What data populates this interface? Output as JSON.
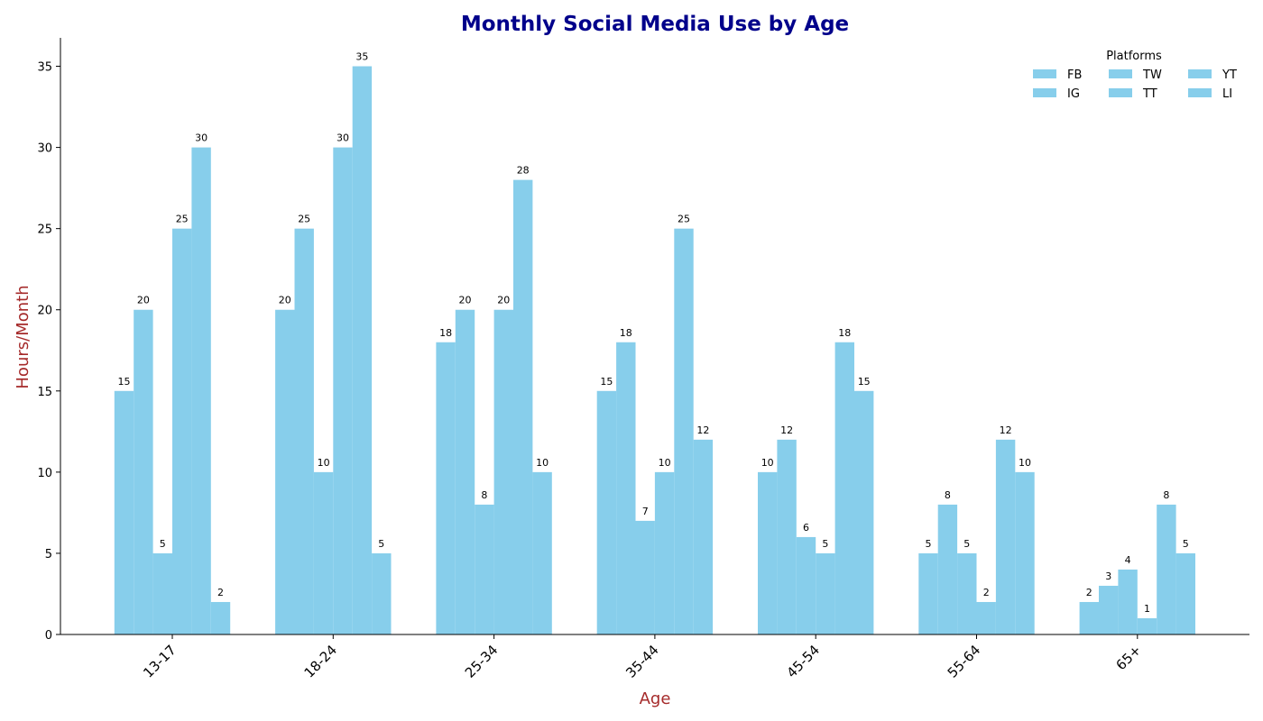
{
  "chart_data": {
    "type": "bar",
    "title": "Monthly Social Media Use by Age",
    "xlabel": "Age",
    "ylabel": "Hours/Month",
    "categories": [
      "13-17",
      "18-24",
      "25-34",
      "35-44",
      "45-54",
      "55-64",
      "65+"
    ],
    "series": [
      {
        "name": "FB",
        "values": [
          15,
          20,
          18,
          15,
          10,
          5,
          2
        ]
      },
      {
        "name": "IG",
        "values": [
          20,
          25,
          20,
          18,
          12,
          8,
          3
        ]
      },
      {
        "name": "TW",
        "values": [
          5,
          10,
          8,
          7,
          6,
          5,
          4
        ]
      },
      {
        "name": "TT",
        "values": [
          25,
          30,
          20,
          10,
          5,
          2,
          1
        ]
      },
      {
        "name": "YT",
        "values": [
          30,
          35,
          28,
          25,
          18,
          12,
          8
        ]
      },
      {
        "name": "LI",
        "values": [
          2,
          5,
          10,
          12,
          15,
          10,
          5
        ]
      }
    ],
    "ylim": [
      0,
      36.75
    ],
    "yticks": [
      0,
      5,
      10,
      15,
      20,
      25,
      30,
      35
    ],
    "legend": {
      "title": "Platforms",
      "placement": "top-right",
      "columns": 3
    },
    "grid": false,
    "bar_color": "#87CEEB",
    "title_color": "#00008B",
    "axis_label_color": "#A52A2A"
  }
}
